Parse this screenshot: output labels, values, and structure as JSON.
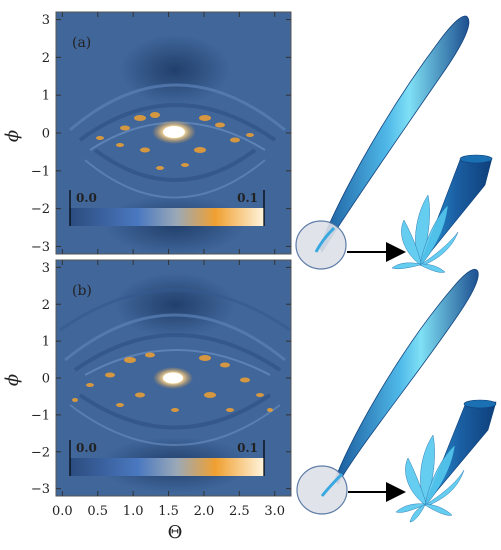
{
  "figure": {
    "theta_values": [
      "0.0",
      "0.5",
      "1.0",
      "1.5",
      "2.0",
      "2.5",
      "3.0"
    ],
    "phi_values": [
      "3",
      "2",
      "1",
      "0",
      "−1",
      "−2",
      "−3"
    ],
    "x_label": "Θ",
    "y_label": "ϕ"
  },
  "panels": [
    {
      "label": "(a)",
      "colorbar_min": "0.0",
      "colorbar_max": "0.1"
    },
    {
      "label": "(b)",
      "colorbar_min": "0.0",
      "colorbar_max": "0.1"
    }
  ],
  "colors": {
    "background_blue": "#40669a",
    "dark_blue": "#2b4c7e",
    "orange": "#f0a030",
    "hot": "#ffffff",
    "lobe_light": "#55c8ee",
    "lobe_dark": "#1a5a9c"
  }
}
